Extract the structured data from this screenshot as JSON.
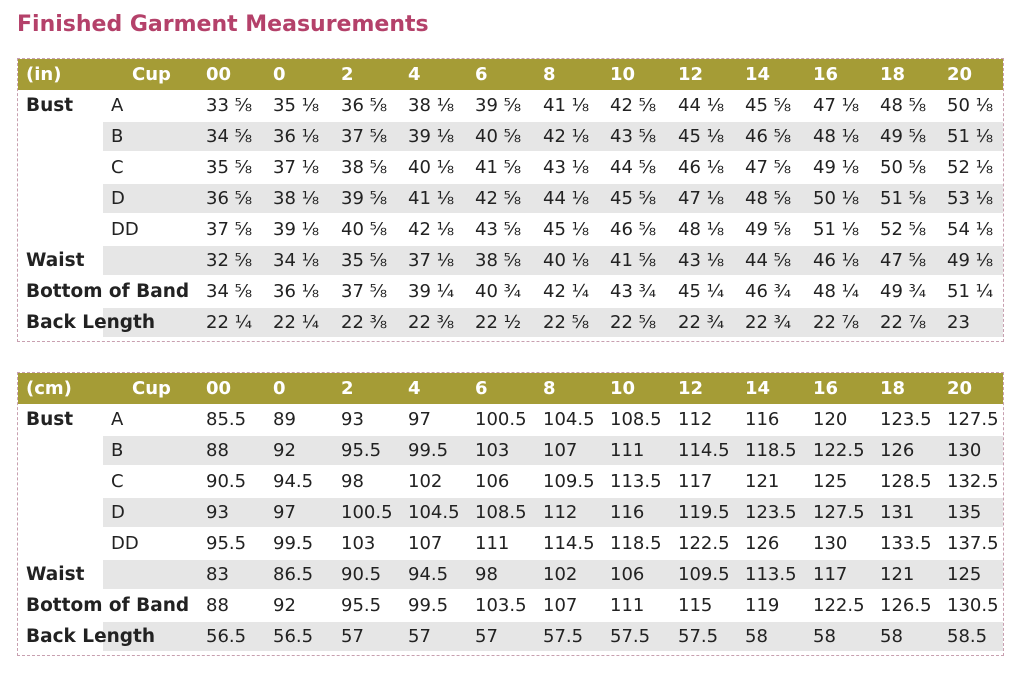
{
  "title": "Finished Garment Measurements",
  "tables": [
    {
      "unit": "(in)",
      "cup_header": "Cup",
      "sizes": [
        "00",
        "0",
        "2",
        "4",
        "6",
        "8",
        "10",
        "12",
        "14",
        "16",
        "18",
        "20"
      ],
      "rows": [
        {
          "label": "Bust",
          "cup": "A",
          "values": [
            "33 ⅝",
            "35 ⅛",
            "36 ⅝",
            "38 ⅛",
            "39 ⅝",
            "41 ⅛",
            "42 ⅝",
            "44 ⅛",
            "45 ⅝",
            "47 ⅛",
            "48 ⅝",
            "50 ⅛"
          ]
        },
        {
          "label": "",
          "cup": "B",
          "values": [
            "34 ⅝",
            "36 ⅛",
            "37 ⅝",
            "39 ⅛",
            "40 ⅝",
            "42 ⅛",
            "43 ⅝",
            "45 ⅛",
            "46 ⅝",
            "48 ⅛",
            "49 ⅝",
            "51 ⅛"
          ]
        },
        {
          "label": "",
          "cup": "C",
          "values": [
            "35 ⅝",
            "37 ⅛",
            "38 ⅝",
            "40 ⅛",
            "41 ⅝",
            "43 ⅛",
            "44 ⅝",
            "46 ⅛",
            "47 ⅝",
            "49 ⅛",
            "50 ⅝",
            "52 ⅛"
          ]
        },
        {
          "label": "",
          "cup": "D",
          "values": [
            "36 ⅝",
            "38 ⅛",
            "39 ⅝",
            "41 ⅛",
            "42 ⅝",
            "44 ⅛",
            "45 ⅝",
            "47 ⅛",
            "48 ⅝",
            "50 ⅛",
            "51 ⅝",
            "53 ⅛"
          ]
        },
        {
          "label": "",
          "cup": "DD",
          "values": [
            "37 ⅝",
            "39 ⅛",
            "40 ⅝",
            "42 ⅛",
            "43 ⅝",
            "45 ⅛",
            "46 ⅝",
            "48 ⅛",
            "49 ⅝",
            "51 ⅛",
            "52 ⅝",
            "54 ⅛"
          ]
        },
        {
          "label": "Waist",
          "cup": "",
          "values": [
            "32 ⅝",
            "34 ⅛",
            "35 ⅝",
            "37 ⅛",
            "38 ⅝",
            "40 ⅛",
            "41 ⅝",
            "43 ⅛",
            "44 ⅝",
            "46 ⅛",
            "47 ⅝",
            "49 ⅛"
          ]
        },
        {
          "label": "Bottom of Band",
          "cup": "",
          "values": [
            "34 ⅝",
            "36 ⅛",
            "37 ⅝",
            "39 ¼",
            "40 ¾",
            "42 ¼",
            "43 ¾",
            "45 ¼",
            "46 ¾",
            "48 ¼",
            "49 ¾",
            "51 ¼"
          ]
        },
        {
          "label": "Back Length",
          "cup": "",
          "values": [
            "22 ¼",
            "22 ¼",
            "22 ⅜",
            "22 ⅜",
            "22 ½",
            "22 ⅝",
            "22 ⅝",
            "22 ¾",
            "22 ¾",
            "22 ⅞",
            "22 ⅞",
            "23"
          ]
        }
      ]
    },
    {
      "unit": "(cm)",
      "cup_header": "Cup",
      "sizes": [
        "00",
        "0",
        "2",
        "4",
        "6",
        "8",
        "10",
        "12",
        "14",
        "16",
        "18",
        "20"
      ],
      "rows": [
        {
          "label": "Bust",
          "cup": "A",
          "values": [
            "85.5",
            "89",
            "93",
            "97",
            "100.5",
            "104.5",
            "108.5",
            "112",
            "116",
            "120",
            "123.5",
            "127.5"
          ]
        },
        {
          "label": "",
          "cup": "B",
          "values": [
            "88",
            "92",
            "95.5",
            "99.5",
            "103",
            "107",
            "111",
            "114.5",
            "118.5",
            "122.5",
            "126",
            "130"
          ]
        },
        {
          "label": "",
          "cup": "C",
          "values": [
            "90.5",
            "94.5",
            "98",
            "102",
            "106",
            "109.5",
            "113.5",
            "117",
            "121",
            "125",
            "128.5",
            "132.5"
          ]
        },
        {
          "label": "",
          "cup": "D",
          "values": [
            "93",
            "97",
            "100.5",
            "104.5",
            "108.5",
            "112",
            "116",
            "119.5",
            "123.5",
            "127.5",
            "131",
            "135"
          ]
        },
        {
          "label": "",
          "cup": "DD",
          "values": [
            "95.5",
            "99.5",
            "103",
            "107",
            "111",
            "114.5",
            "118.5",
            "122.5",
            "126",
            "130",
            "133.5",
            "137.5"
          ]
        },
        {
          "label": "Waist",
          "cup": "",
          "values": [
            "83",
            "86.5",
            "90.5",
            "94.5",
            "98",
            "102",
            "106",
            "109.5",
            "113.5",
            "117",
            "121",
            "125"
          ]
        },
        {
          "label": "Bottom of Band",
          "cup": "",
          "values": [
            "88",
            "92",
            "95.5",
            "99.5",
            "103.5",
            "107",
            "111",
            "115",
            "119",
            "122.5",
            "126.5",
            "130.5"
          ]
        },
        {
          "label": "Back Length",
          "cup": "",
          "values": [
            "56.5",
            "56.5",
            "57",
            "57",
            "57",
            "57.5",
            "57.5",
            "57.5",
            "58",
            "58",
            "58",
            "58.5"
          ]
        }
      ]
    }
  ],
  "colors": {
    "header": "#a59c36",
    "title": "#b4416a",
    "shade": "#e6e6e6"
  }
}
